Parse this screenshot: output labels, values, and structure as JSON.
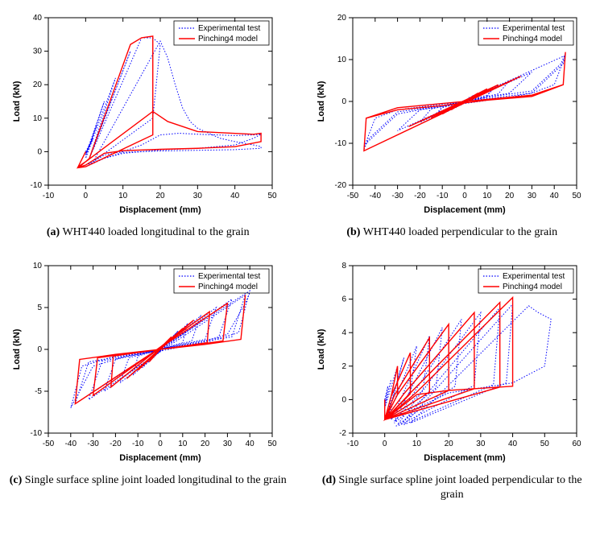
{
  "colors": {
    "experimental": "#0000ff",
    "model": "#ff0000",
    "axis": "#000000",
    "background": "#ffffff"
  },
  "legend": {
    "exp_label": "Experimental test",
    "model_label": "Pinching4 model"
  },
  "axis_labels": {
    "x": "Displacement (mm)",
    "y": "Load (kN)"
  },
  "charts": {
    "a": {
      "caption_tag": "(a)",
      "caption_text": " WHT440 loaded longitudinal to the grain",
      "xlim": [
        -10,
        50
      ],
      "xtick_step": 10,
      "ylim": [
        -10,
        40
      ],
      "ytick_step": 10,
      "legend_pos": "top-right",
      "exp_path": [
        [
          0,
          0
        ],
        [
          1,
          2
        ],
        [
          0,
          -0.5
        ],
        [
          2,
          4
        ],
        [
          0,
          -1
        ],
        [
          3,
          8
        ],
        [
          0,
          -1
        ],
        [
          5,
          15
        ],
        [
          0,
          -2
        ],
        [
          8,
          22
        ],
        [
          1,
          -2
        ],
        [
          12,
          30
        ],
        [
          1,
          -2
        ],
        [
          15,
          34
        ],
        [
          18,
          34
        ],
        [
          20,
          32
        ],
        [
          18,
          10
        ],
        [
          2,
          -3
        ],
        [
          20,
          33
        ],
        [
          22,
          28
        ],
        [
          24,
          20
        ],
        [
          26,
          13
        ],
        [
          28,
          9
        ],
        [
          30,
          7
        ],
        [
          32,
          6
        ],
        [
          34,
          5
        ],
        [
          36,
          4
        ],
        [
          38,
          3.5
        ],
        [
          40,
          3
        ],
        [
          45,
          2
        ],
        [
          47,
          1.5
        ],
        [
          47,
          1
        ],
        [
          40,
          0.6
        ],
        [
          30,
          0.4
        ],
        [
          20,
          0.2
        ],
        [
          10,
          -0.2
        ],
        [
          5,
          -2
        ],
        [
          2,
          -3.5
        ],
        [
          0,
          -4.5
        ],
        [
          -2,
          -4.8
        ],
        [
          0,
          -4
        ],
        [
          2,
          -3
        ],
        [
          5,
          -1
        ],
        [
          10,
          0
        ],
        [
          15,
          2
        ],
        [
          20,
          5
        ],
        [
          25,
          5.5
        ],
        [
          30,
          5.2
        ],
        [
          35,
          5
        ],
        [
          40,
          4.8
        ],
        [
          45,
          5
        ],
        [
          47,
          5.2
        ],
        [
          45,
          4
        ],
        [
          40,
          2
        ],
        [
          30,
          1
        ],
        [
          20,
          0.5
        ],
        [
          10,
          -0.5
        ],
        [
          5,
          -2
        ],
        [
          0,
          -4
        ]
      ],
      "model_path": [
        [
          0,
          0
        ],
        [
          -2,
          -4.5
        ],
        [
          0,
          -3
        ],
        [
          1,
          -2
        ],
        [
          12,
          32
        ],
        [
          15,
          34
        ],
        [
          18,
          34.5
        ],
        [
          18,
          5
        ],
        [
          0,
          -4.5
        ],
        [
          -2,
          -4.8
        ],
        [
          0,
          -3
        ],
        [
          18,
          12
        ],
        [
          22,
          9
        ],
        [
          30,
          6
        ],
        [
          45,
          5.2
        ],
        [
          47,
          5.5
        ],
        [
          47,
          3
        ],
        [
          40,
          1.5
        ],
        [
          30,
          1
        ],
        [
          20,
          0.7
        ],
        [
          10,
          0.3
        ],
        [
          5,
          -0.5
        ],
        [
          0,
          -4
        ],
        [
          -2,
          -4.7
        ]
      ]
    },
    "b": {
      "caption_tag": "(b)",
      "caption_text": " WHT440 loaded perpendicular to the grain",
      "xlim": [
        -50,
        50
      ],
      "xtick_step": 10,
      "ylim": [
        -20,
        20
      ],
      "ytick_step": 10,
      "legend_pos": "top-right",
      "exp_path": [
        [
          0,
          0
        ],
        [
          2,
          1
        ],
        [
          -2,
          -1
        ],
        [
          4,
          1.5
        ],
        [
          -4,
          -1.5
        ],
        [
          6,
          2
        ],
        [
          -6,
          -2
        ],
        [
          8,
          2.5
        ],
        [
          -8,
          -2.5
        ],
        [
          10,
          3
        ],
        [
          -10,
          -3
        ],
        [
          12,
          3.2
        ],
        [
          10,
          1
        ],
        [
          -10,
          -1
        ],
        [
          -12,
          -3.2
        ],
        [
          15,
          4
        ],
        [
          10,
          1.5
        ],
        [
          -10,
          -1.5
        ],
        [
          -15,
          -4
        ],
        [
          20,
          5
        ],
        [
          15,
          1.8
        ],
        [
          -15,
          -1.8
        ],
        [
          -20,
          -5
        ],
        [
          30,
          7
        ],
        [
          20,
          2
        ],
        [
          -20,
          -2
        ],
        [
          -30,
          -7
        ],
        [
          45,
          11
        ],
        [
          40,
          4
        ],
        [
          30,
          2
        ],
        [
          -30,
          -2
        ],
        [
          -40,
          -4
        ],
        [
          -45,
          -11
        ],
        [
          -44,
          -10
        ],
        [
          -30,
          -3
        ],
        [
          -20,
          -2
        ],
        [
          0,
          -0.5
        ],
        [
          20,
          1
        ],
        [
          30,
          2
        ],
        [
          44,
          9
        ],
        [
          45,
          11.5
        ],
        [
          43,
          9
        ],
        [
          30,
          2.5
        ],
        [
          10,
          1
        ],
        [
          -10,
          -1
        ],
        [
          -30,
          -2.5
        ],
        [
          -43,
          -9
        ],
        [
          -45,
          -11.5
        ]
      ],
      "model_path": [
        [
          0,
          0
        ],
        [
          -6,
          -2
        ],
        [
          6,
          2
        ],
        [
          -10,
          -3
        ],
        [
          10,
          3
        ],
        [
          -15,
          -4
        ],
        [
          15,
          4
        ],
        [
          -25,
          -6
        ],
        [
          25,
          6
        ],
        [
          -45,
          -11.8
        ],
        [
          -44,
          -4
        ],
        [
          -30,
          -2
        ],
        [
          -10,
          -1
        ],
        [
          10,
          0.3
        ],
        [
          30,
          1.2
        ],
        [
          44,
          4
        ],
        [
          45,
          11.8
        ],
        [
          44,
          4
        ],
        [
          30,
          1.5
        ],
        [
          10,
          0.5
        ],
        [
          -10,
          -0.5
        ],
        [
          -30,
          -1.5
        ],
        [
          -44,
          -4
        ],
        [
          -45,
          -11.8
        ]
      ]
    },
    "c": {
      "caption_tag": "(c)",
      "caption_text": " Single surface spline joint loaded longitudinal to the grain",
      "xlim": [
        -50,
        50
      ],
      "xtick_step": 10,
      "ylim": [
        -10,
        10
      ],
      "ytick_step": 5,
      "legend_pos": "top-right",
      "exp_path": [
        [
          0,
          0
        ],
        [
          1,
          0.5
        ],
        [
          -1,
          -0.5
        ],
        [
          3,
          1
        ],
        [
          -3,
          -1
        ],
        [
          5,
          1.5
        ],
        [
          -5,
          -1.5
        ],
        [
          8,
          2.2
        ],
        [
          -8,
          -2.2
        ],
        [
          12,
          3
        ],
        [
          10,
          0.8
        ],
        [
          -10,
          -0.8
        ],
        [
          -12,
          -3
        ],
        [
          18,
          4
        ],
        [
          14,
          1
        ],
        [
          -14,
          -1
        ],
        [
          -18,
          -4
        ],
        [
          25,
          5
        ],
        [
          20,
          1.2
        ],
        [
          -20,
          -1.2
        ],
        [
          -25,
          -5
        ],
        [
          32,
          6
        ],
        [
          26,
          1.4
        ],
        [
          -26,
          -1.4
        ],
        [
          -32,
          -6
        ],
        [
          38,
          6.5
        ],
        [
          32,
          1.5
        ],
        [
          -32,
          -1.5
        ],
        [
          -38,
          -6.5
        ],
        [
          40,
          7
        ],
        [
          35,
          2
        ],
        [
          20,
          0.8
        ],
        [
          -20,
          -0.8
        ],
        [
          -35,
          -2
        ],
        [
          -40,
          -7
        ],
        [
          -38,
          -6
        ],
        [
          -30,
          -2
        ],
        [
          -15,
          -0.8
        ],
        [
          0,
          -0.2
        ],
        [
          15,
          0.6
        ],
        [
          30,
          1.8
        ],
        [
          38,
          5.5
        ],
        [
          40,
          6.8
        ]
      ],
      "model_path": [
        [
          0,
          0
        ],
        [
          -5,
          -1.5
        ],
        [
          5,
          1.5
        ],
        [
          -10,
          -2.5
        ],
        [
          10,
          2.5
        ],
        [
          -15,
          -3.5
        ],
        [
          15,
          3.5
        ],
        [
          -22,
          -4.5
        ],
        [
          -21,
          -0.8
        ],
        [
          21,
          0.8
        ],
        [
          22,
          4.5
        ],
        [
          -30,
          -5.5
        ],
        [
          -28,
          -1
        ],
        [
          28,
          1
        ],
        [
          30,
          5.5
        ],
        [
          -38,
          -6.5
        ],
        [
          -36,
          -1.2
        ],
        [
          -20,
          -0.6
        ],
        [
          20,
          0.6
        ],
        [
          36,
          1.2
        ],
        [
          38,
          6.5
        ],
        [
          36,
          1.2
        ],
        [
          20,
          0.6
        ],
        [
          -20,
          -0.6
        ],
        [
          -36,
          -1.2
        ],
        [
          -38,
          -6.5
        ]
      ]
    },
    "d": {
      "caption_tag": "(d)",
      "caption_text": " Single surface spline joint loaded perpendicular to the grain",
      "xlim": [
        -10,
        60
      ],
      "xtick_step": 10,
      "ylim": [
        -2,
        8
      ],
      "ytick_step": 2,
      "legend_pos": "top-right",
      "exp_path": [
        [
          0,
          0
        ],
        [
          1,
          0.8
        ],
        [
          0,
          -0.3
        ],
        [
          2,
          1.2
        ],
        [
          0,
          -0.5
        ],
        [
          4,
          2
        ],
        [
          1,
          -0.8
        ],
        [
          6,
          2.5
        ],
        [
          1,
          -1
        ],
        [
          10,
          3.2
        ],
        [
          8,
          0.5
        ],
        [
          2,
          -1.2
        ],
        [
          14,
          3.8
        ],
        [
          12,
          0.6
        ],
        [
          3,
          -1.3
        ],
        [
          18,
          4.3
        ],
        [
          16,
          0.7
        ],
        [
          3,
          -1.4
        ],
        [
          24,
          4.8
        ],
        [
          22,
          0.8
        ],
        [
          4,
          -1.5
        ],
        [
          30,
          5.2
        ],
        [
          28,
          0.85
        ],
        [
          5,
          -1.5
        ],
        [
          36,
          5.5
        ],
        [
          34,
          0.9
        ],
        [
          6,
          -1.5
        ],
        [
          40,
          5.7
        ],
        [
          38,
          1
        ],
        [
          8,
          -1.4
        ],
        [
          45,
          5.6
        ],
        [
          48,
          5.2
        ],
        [
          52,
          4.8
        ],
        [
          50,
          2
        ],
        [
          40,
          1
        ],
        [
          30,
          0.7
        ],
        [
          20,
          0.4
        ],
        [
          10,
          -0.5
        ],
        [
          5,
          -1.5
        ],
        [
          3,
          -1.6
        ]
      ],
      "model_path": [
        [
          0,
          0
        ],
        [
          0,
          -1.2
        ],
        [
          2,
          0.2
        ],
        [
          4,
          2
        ],
        [
          4,
          0.3
        ],
        [
          0,
          -1.2
        ],
        [
          2,
          0.2
        ],
        [
          8,
          2.8
        ],
        [
          8,
          0.35
        ],
        [
          0,
          -1.2
        ],
        [
          3,
          0.25
        ],
        [
          14,
          3.7
        ],
        [
          14,
          0.45
        ],
        [
          0,
          -1.2
        ],
        [
          4,
          0.3
        ],
        [
          20,
          4.5
        ],
        [
          20,
          0.55
        ],
        [
          0,
          -1.2
        ],
        [
          6,
          0.35
        ],
        [
          28,
          5.2
        ],
        [
          28,
          0.65
        ],
        [
          0,
          -1.2
        ],
        [
          8,
          0.4
        ],
        [
          36,
          5.8
        ],
        [
          36,
          0.75
        ],
        [
          0,
          -1.2
        ],
        [
          10,
          0.45
        ],
        [
          40,
          6.1
        ],
        [
          40,
          0.8
        ],
        [
          20,
          0.55
        ],
        [
          10,
          0.3
        ],
        [
          0,
          -1.2
        ]
      ]
    }
  }
}
